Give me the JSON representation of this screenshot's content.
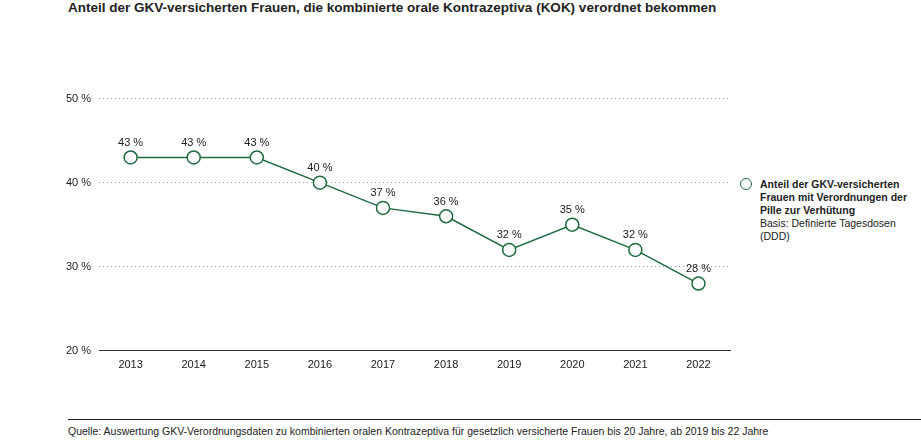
{
  "chart_data": {
    "type": "line",
    "title": "Anteil der GKV-versicherten Frauen, die kombinierte orale Kontrazeptiva (KOK) verordnet bekommen",
    "categories": [
      "2013",
      "2014",
      "2015",
      "2016",
      "2017",
      "2018",
      "2019",
      "2020",
      "2021",
      "2022"
    ],
    "series": [
      {
        "name": "Anteil der GKV-versicherten Frauen mit Verordnungen der Pille zur Verhütung",
        "color": "#1f6b3f",
        "marker": "circle",
        "values": [
          43,
          43,
          43,
          40,
          37,
          36,
          32,
          35,
          32,
          28
        ],
        "value_labels": [
          "43 %",
          "43 %",
          "43 %",
          "40 %",
          "37 %",
          "36 %",
          "32 %",
          "35 %",
          "32 %",
          "28 %"
        ]
      }
    ],
    "ylim": [
      20,
      50
    ],
    "yticks": [
      {
        "value": 20,
        "label": "20 %"
      },
      {
        "value": 30,
        "label": "30 %"
      },
      {
        "value": 40,
        "label": "40 %"
      },
      {
        "value": 50,
        "label": "50 %"
      }
    ],
    "grid": true,
    "data_labels": true,
    "legend": "right",
    "annotations": [
      "Basis: Definierte Tagesdosen (DDD)"
    ],
    "source": "Quelle: Auswertung GKV-Verordnungsdaten zu kombinierten oralen Kontrazeptiva für gesetzlich versicherte Frauen bis 20 Jahre, ab 2019 bis 22 Jahre"
  }
}
